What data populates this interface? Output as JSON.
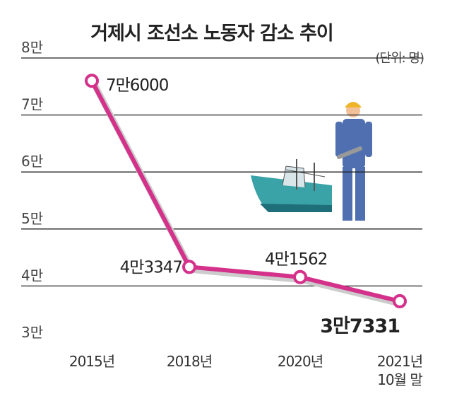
{
  "chart_data": {
    "type": "line",
    "title": "거제시 조선소 노동자 감소 추이",
    "unit_note": "(단위: 명)",
    "categories": [
      "2015년",
      "2018년",
      "2020년",
      "2021년 10월 말"
    ],
    "series": [
      {
        "color": "#d4318b",
        "values": [
          76000,
          43347,
          41562,
          37331
        ],
        "value_labels": [
          "7만6000",
          "4만3347",
          "4만1562",
          "3만7331"
        ]
      }
    ],
    "ylim": [
      30000,
      80000
    ],
    "yticks": [
      {
        "value": 30000,
        "label": "3만"
      },
      {
        "value": 40000,
        "label": "4만"
      },
      {
        "value": 50000,
        "label": "5만"
      },
      {
        "value": 60000,
        "label": "6만"
      },
      {
        "value": 70000,
        "label": "7만"
      },
      {
        "value": 80000,
        "label": "8만"
      }
    ],
    "grid": true
  }
}
